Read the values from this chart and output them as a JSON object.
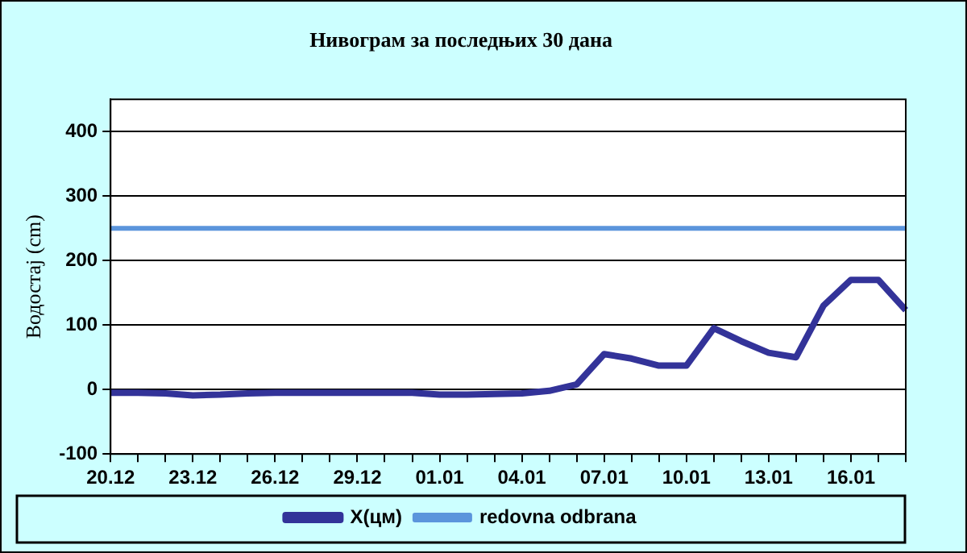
{
  "chart_data": {
    "type": "line",
    "title": "Нивограм за последњих 30 дана",
    "ylabel": "Водостај (cm)",
    "categories": [
      "20.12",
      null,
      null,
      "23.12",
      null,
      null,
      "26.12",
      null,
      null,
      "29.12",
      null,
      null,
      "01.01",
      null,
      null,
      "04.01",
      null,
      null,
      "07.01",
      null,
      null,
      "10.01",
      null,
      null,
      "13.01",
      null,
      null,
      "16.01",
      null,
      null
    ],
    "series": [
      {
        "name": "X(цм)",
        "color": "#333399",
        "values": [
          -5,
          -5,
          -6,
          -9,
          -8,
          -6,
          -5,
          -5,
          -5,
          -5,
          -5,
          -5,
          -8,
          -8,
          -7,
          -6,
          -2,
          8,
          55,
          48,
          37,
          37,
          95,
          75,
          57,
          50,
          130,
          170,
          170,
          123
        ]
      },
      {
        "name": "redovna odbrana",
        "color": "#5b95dc",
        "values": [
          250,
          250,
          250,
          250,
          250,
          250,
          250,
          250,
          250,
          250,
          250,
          250,
          250,
          250,
          250,
          250,
          250,
          250,
          250,
          250,
          250,
          250,
          250,
          250,
          250,
          250,
          250,
          250,
          250,
          250
        ]
      }
    ],
    "ylim": [
      -100,
      450
    ],
    "yticks": [
      -100,
      0,
      100,
      200,
      300,
      400
    ],
    "grid": "y",
    "legend": "bottom",
    "marker": "none",
    "line_style": "solid"
  }
}
